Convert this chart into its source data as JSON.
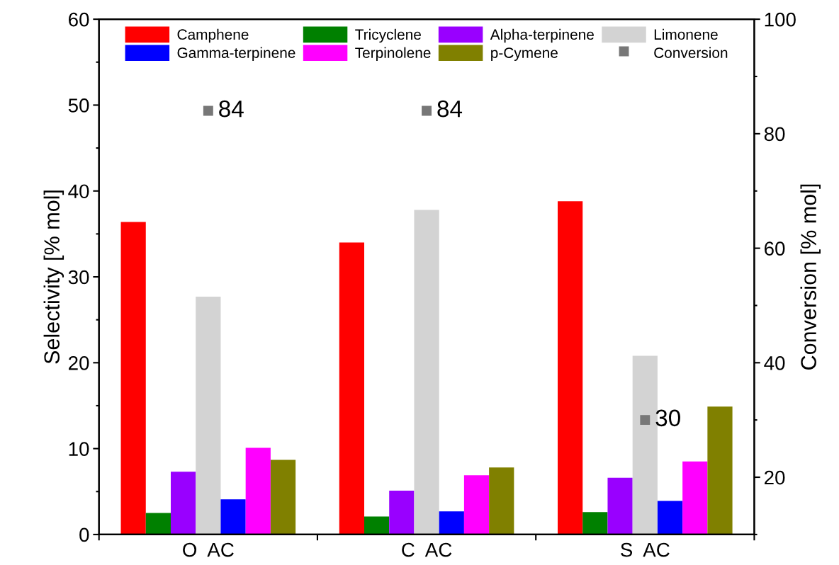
{
  "chart_data": {
    "type": "bar",
    "categories": [
      "O  AC",
      "C  AC",
      "S  AC"
    ],
    "ylabel": "Selectivity [% mol]",
    "y2label": "Conversion [% mol]",
    "ylim": [
      0,
      60
    ],
    "yticks": [
      0,
      10,
      20,
      30,
      40,
      50,
      60
    ],
    "y2lim": [
      10,
      100
    ],
    "y2ticks": [
      20,
      40,
      60,
      80,
      100
    ],
    "legend": "top",
    "grid": false,
    "series": [
      {
        "name": "Camphene",
        "color": "#ff0000",
        "values": [
          36.4,
          34.0,
          38.8
        ]
      },
      {
        "name": "Tricyclene",
        "color": "#008000",
        "values": [
          2.5,
          2.1,
          2.6
        ]
      },
      {
        "name": "Alpha-terpinene",
        "color": "#9900ff",
        "values": [
          7.3,
          5.1,
          6.6
        ]
      },
      {
        "name": "Limonene",
        "color": "#d3d3d3",
        "values": [
          27.7,
          37.8,
          20.8
        ]
      },
      {
        "name": "Gamma-terpinene",
        "color": "#0000ff",
        "values": [
          4.1,
          2.7,
          3.9
        ]
      },
      {
        "name": "Terpinolene",
        "color": "#ff00ff",
        "values": [
          10.1,
          6.9,
          8.5
        ]
      },
      {
        "name": "p-Cymene",
        "color": "#808000",
        "values": [
          8.7,
          7.8,
          14.9
        ]
      },
      {
        "name": "Conversion",
        "type": "scatter",
        "axis": "y2",
        "marker": "square",
        "data_labels": true,
        "color": "#777777",
        "values": [
          84,
          84,
          30
        ]
      }
    ]
  }
}
